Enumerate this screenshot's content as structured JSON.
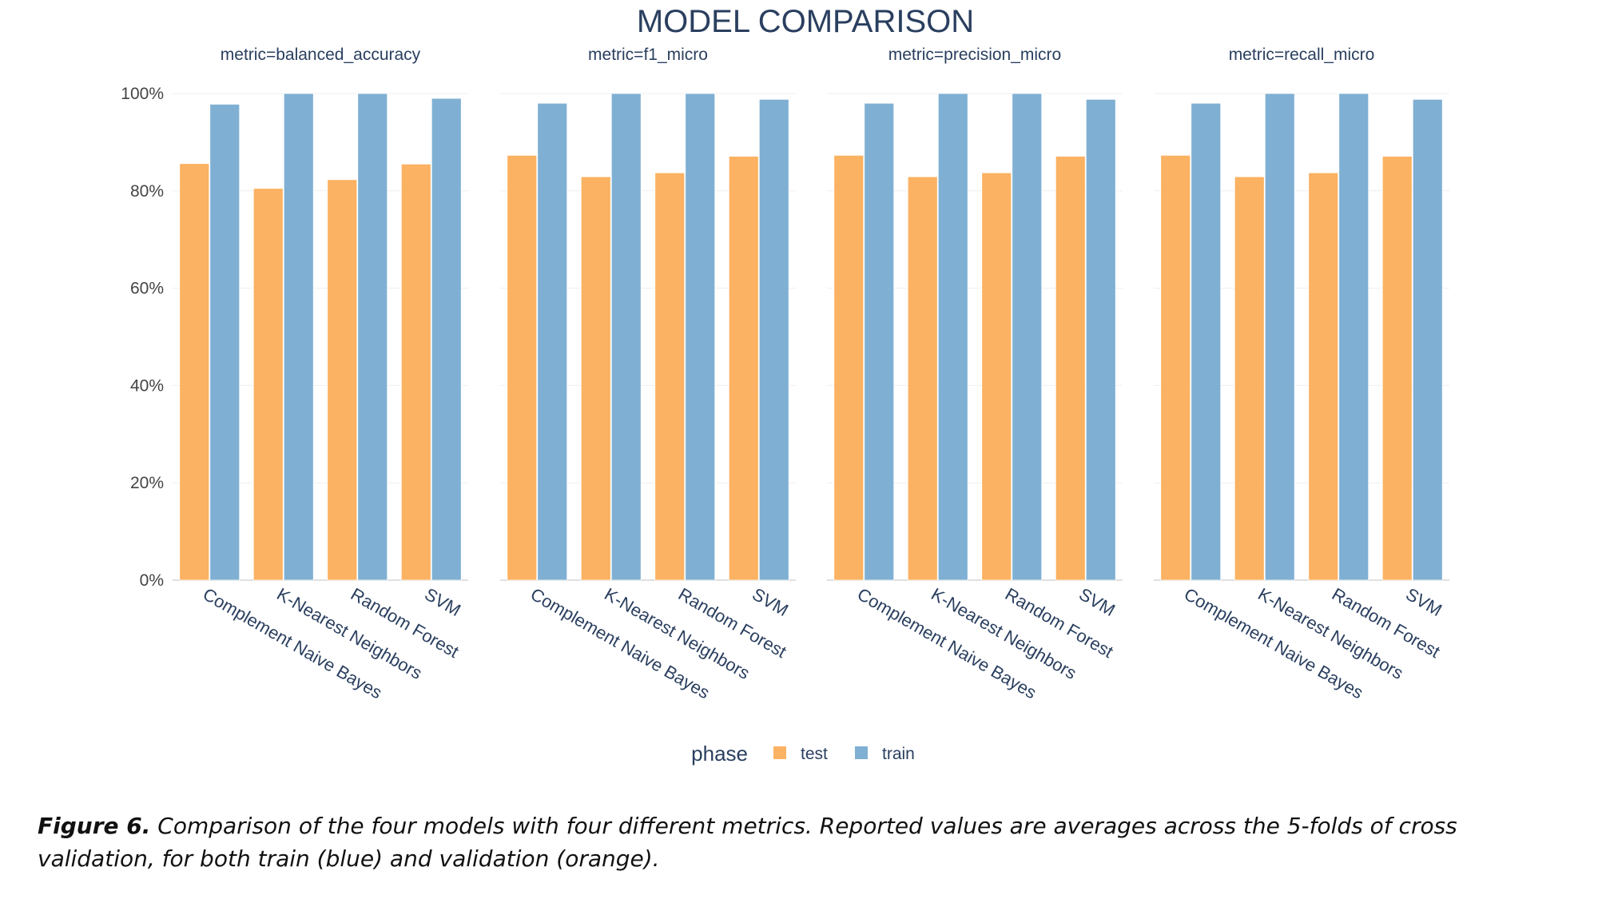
{
  "chart_data": {
    "type": "bar",
    "title": "MODEL COMPARISON",
    "categories": [
      "Complement Naive Bayes",
      "K-Nearest Neighbors",
      "Random Forest",
      "SVM"
    ],
    "y_ticks": [
      "0%",
      "20%",
      "40%",
      "60%",
      "80%",
      "100%"
    ],
    "ylim": [
      0,
      1
    ],
    "grid": true,
    "legend": {
      "title": "phase",
      "placement": "bottom-center",
      "entries": [
        {
          "name": "test",
          "color": "#FBB262"
        },
        {
          "name": "train",
          "color": "#7FB0D3"
        }
      ]
    },
    "panels": [
      {
        "title": "metric=balanced_accuracy",
        "series": [
          {
            "name": "test",
            "values": [
              0.856,
              0.805,
              0.823,
              0.855
            ]
          },
          {
            "name": "train",
            "values": [
              0.978,
              1.0,
              1.0,
              0.99
            ]
          }
        ]
      },
      {
        "title": "metric=f1_micro",
        "series": [
          {
            "name": "test",
            "values": [
              0.873,
              0.829,
              0.837,
              0.871
            ]
          },
          {
            "name": "train",
            "values": [
              0.98,
              1.0,
              1.0,
              0.988
            ]
          }
        ]
      },
      {
        "title": "metric=precision_micro",
        "series": [
          {
            "name": "test",
            "values": [
              0.873,
              0.829,
              0.837,
              0.871
            ]
          },
          {
            "name": "train",
            "values": [
              0.98,
              1.0,
              1.0,
              0.988
            ]
          }
        ]
      },
      {
        "title": "metric=recall_micro",
        "series": [
          {
            "name": "test",
            "values": [
              0.873,
              0.829,
              0.837,
              0.871
            ]
          },
          {
            "name": "train",
            "values": [
              0.98,
              1.0,
              1.0,
              0.988
            ]
          }
        ]
      }
    ]
  },
  "caption": {
    "label": "Figure 6.",
    "text": " Comparison of the four models with four different metrics. Reported values are averages across the 5-folds of cross validation, for both train (blue) and validation (orange)."
  }
}
